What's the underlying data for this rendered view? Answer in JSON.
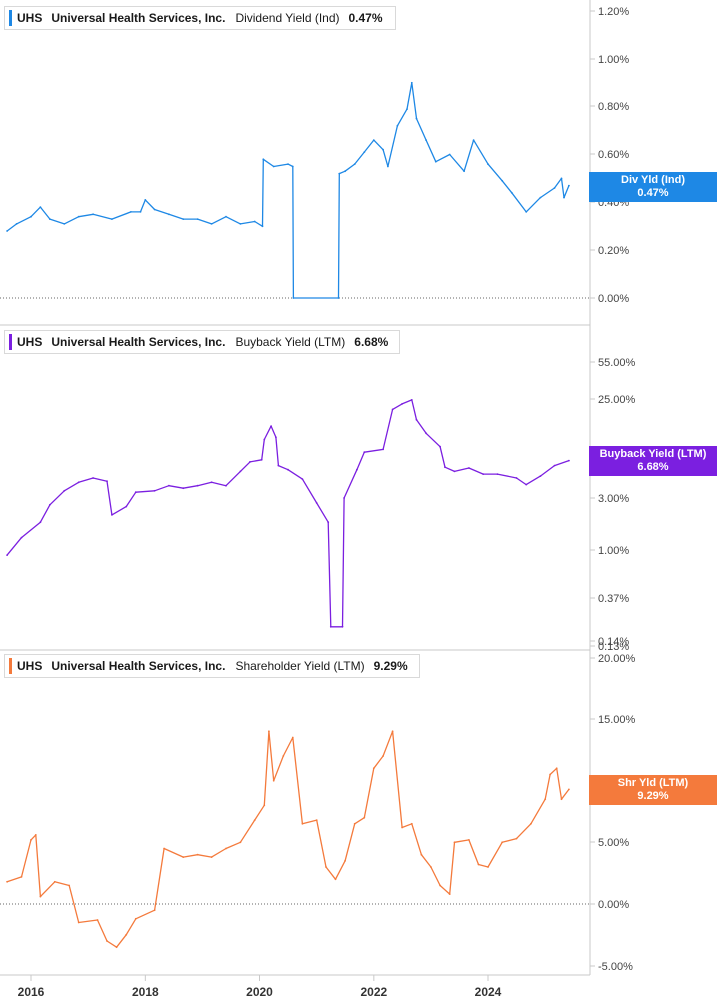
{
  "colors": {
    "dividend": "#1e88e5",
    "buyback": "#7b1fe0",
    "shareholder": "#f47a3c",
    "grid": "#c9c9c9",
    "axis_text": "#444444"
  },
  "x_axis": {
    "tick_labels": [
      "2016",
      "2018",
      "2020",
      "2022",
      "2024"
    ]
  },
  "panels": [
    {
      "ticker": "UHS",
      "company": "Universal Health Services, Inc.",
      "metric": "Dividend Yield (Ind)",
      "value": "0.47%",
      "flag_label": "Div Yld (Ind)",
      "flag_value": "0.47%",
      "axis_ticks": [
        "1.20%",
        "1.00%",
        "0.80%",
        "0.60%",
        "0.40%",
        "0.20%",
        "0.00%"
      ]
    },
    {
      "ticker": "UHS",
      "company": "Universal Health Services, Inc.",
      "metric": "Buyback Yield (LTM)",
      "value": "6.68%",
      "flag_label": "Buyback Yield (LTM)",
      "flag_value": "6.68%",
      "axis_ticks": [
        "55.00%",
        "25.00%",
        "3.00%",
        "1.00%",
        "0.37%",
        "0.14%",
        "0.13%"
      ]
    },
    {
      "ticker": "UHS",
      "company": "Universal Health Services, Inc.",
      "metric": "Shareholder Yield (LTM)",
      "value": "9.29%",
      "flag_label": "Shr Yld (LTM)",
      "flag_value": "9.29%",
      "axis_ticks": [
        "20.00%",
        "15.00%",
        "10.00%",
        "5.00%",
        "0.00%",
        "-5.00%"
      ]
    }
  ],
  "chart_data": [
    {
      "type": "line",
      "title": "Dividend Yield (Ind)",
      "ylim": [
        0,
        1.2
      ],
      "y_scale": "linear",
      "series": [
        {
          "name": "Dividend Yield (Ind)",
          "points": [
            [
              "2015-08-01",
              0.28
            ],
            [
              "2015-10-01",
              0.31
            ],
            [
              "2016-01-01",
              0.34
            ],
            [
              "2016-03-01",
              0.38
            ],
            [
              "2016-05-01",
              0.33
            ],
            [
              "2016-08-01",
              0.31
            ],
            [
              "2016-11-01",
              0.34
            ],
            [
              "2017-02-01",
              0.35
            ],
            [
              "2017-06-01",
              0.33
            ],
            [
              "2017-10-01",
              0.36
            ],
            [
              "2017-12-01",
              0.36
            ],
            [
              "2018-01-01",
              0.41
            ],
            [
              "2018-03-01",
              0.37
            ],
            [
              "2018-06-01",
              0.35
            ],
            [
              "2018-09-01",
              0.33
            ],
            [
              "2018-12-01",
              0.33
            ],
            [
              "2019-03-01",
              0.31
            ],
            [
              "2019-06-01",
              0.34
            ],
            [
              "2019-09-01",
              0.31
            ],
            [
              "2019-12-01",
              0.32
            ],
            [
              "2020-01-20",
              0.3
            ],
            [
              "2020-01-25",
              0.58
            ],
            [
              "2020-04-01",
              0.55
            ],
            [
              "2020-07-01",
              0.56
            ],
            [
              "2020-08-01",
              0.55
            ],
            [
              "2020-08-05",
              0.0
            ],
            [
              "2021-05-20",
              0.0
            ],
            [
              "2021-05-25",
              0.52
            ],
            [
              "2021-07-01",
              0.53
            ],
            [
              "2021-09-01",
              0.56
            ],
            [
              "2021-11-01",
              0.61
            ],
            [
              "2022-01-01",
              0.66
            ],
            [
              "2022-03-01",
              0.62
            ],
            [
              "2022-04-01",
              0.55
            ],
            [
              "2022-06-01",
              0.72
            ],
            [
              "2022-08-01",
              0.79
            ],
            [
              "2022-09-01",
              0.9
            ],
            [
              "2022-10-01",
              0.75
            ],
            [
              "2022-12-01",
              0.66
            ],
            [
              "2023-02-01",
              0.57
            ],
            [
              "2023-05-01",
              0.6
            ],
            [
              "2023-08-01",
              0.53
            ],
            [
              "2023-10-01",
              0.66
            ],
            [
              "2024-01-01",
              0.56
            ],
            [
              "2024-04-01",
              0.49
            ],
            [
              "2024-06-01",
              0.44
            ],
            [
              "2024-09-01",
              0.36
            ],
            [
              "2024-12-01",
              0.42
            ],
            [
              "2025-03-01",
              0.46
            ],
            [
              "2025-04-15",
              0.5
            ],
            [
              "2025-05-01",
              0.42
            ],
            [
              "2025-06-01",
              0.47
            ]
          ]
        }
      ]
    },
    {
      "type": "line",
      "title": "Buyback Yield (LTM)",
      "y_scale": "log",
      "ylim": [
        0.13,
        55
      ],
      "series": [
        {
          "name": "Buyback Yield (LTM)",
          "points": [
            [
              "2015-08-01",
              0.9
            ],
            [
              "2015-11-01",
              1.3
            ],
            [
              "2016-03-01",
              1.8
            ],
            [
              "2016-05-01",
              2.6
            ],
            [
              "2016-08-01",
              3.5
            ],
            [
              "2016-11-01",
              4.2
            ],
            [
              "2017-02-01",
              4.6
            ],
            [
              "2017-05-01",
              4.3
            ],
            [
              "2017-06-01",
              2.1
            ],
            [
              "2017-09-01",
              2.5
            ],
            [
              "2017-11-01",
              3.4
            ],
            [
              "2018-03-01",
              3.5
            ],
            [
              "2018-06-01",
              3.9
            ],
            [
              "2018-09-01",
              3.7
            ],
            [
              "2018-12-01",
              3.9
            ],
            [
              "2019-03-01",
              4.2
            ],
            [
              "2019-06-01",
              3.9
            ],
            [
              "2019-09-01",
              5.3
            ],
            [
              "2019-11-01",
              6.5
            ],
            [
              "2020-01-15",
              6.8
            ],
            [
              "2020-02-01",
              10.5
            ],
            [
              "2020-03-15",
              14.0
            ],
            [
              "2020-04-15",
              11.0
            ],
            [
              "2020-05-01",
              6.0
            ],
            [
              "2020-07-01",
              5.5
            ],
            [
              "2020-10-01",
              4.5
            ],
            [
              "2021-01-01",
              2.7
            ],
            [
              "2021-03-15",
              1.8
            ],
            [
              "2021-04-01",
              0.19
            ],
            [
              "2021-06-15",
              0.19
            ],
            [
              "2021-06-25",
              3.0
            ],
            [
              "2021-09-15",
              5.5
            ],
            [
              "2021-11-01",
              8.0
            ],
            [
              "2022-03-01",
              8.5
            ],
            [
              "2022-05-01",
              20.0
            ],
            [
              "2022-07-01",
              22.5
            ],
            [
              "2022-09-01",
              24.5
            ],
            [
              "2022-10-01",
              16.0
            ],
            [
              "2022-12-01",
              12.0
            ],
            [
              "2023-03-01",
              9.0
            ],
            [
              "2023-04-01",
              5.8
            ],
            [
              "2023-06-01",
              5.3
            ],
            [
              "2023-09-01",
              5.7
            ],
            [
              "2023-12-01",
              5.0
            ],
            [
              "2024-03-01",
              5.0
            ],
            [
              "2024-07-01",
              4.6
            ],
            [
              "2024-09-01",
              4.0
            ],
            [
              "2024-12-01",
              4.8
            ],
            [
              "2025-03-01",
              6.0
            ],
            [
              "2025-06-01",
              6.68
            ]
          ]
        }
      ]
    },
    {
      "type": "line",
      "title": "Shareholder Yield (LTM)",
      "ylim": [
        -5,
        20
      ],
      "y_scale": "linear",
      "series": [
        {
          "name": "Shareholder Yield (LTM)",
          "points": [
            [
              "2015-08-01",
              1.8
            ],
            [
              "2015-11-01",
              2.2
            ],
            [
              "2016-01-01",
              5.2
            ],
            [
              "2016-02-01",
              5.6
            ],
            [
              "2016-03-01",
              0.6
            ],
            [
              "2016-06-01",
              1.8
            ],
            [
              "2016-09-01",
              1.5
            ],
            [
              "2016-11-01",
              -1.5
            ],
            [
              "2017-03-01",
              -1.3
            ],
            [
              "2017-05-01",
              -3.0
            ],
            [
              "2017-07-01",
              -3.5
            ],
            [
              "2017-09-01",
              -2.5
            ],
            [
              "2017-11-01",
              -1.2
            ],
            [
              "2018-03-01",
              -0.5
            ],
            [
              "2018-05-01",
              4.5
            ],
            [
              "2018-09-01",
              3.8
            ],
            [
              "2018-12-01",
              4.0
            ],
            [
              "2019-03-01",
              3.8
            ],
            [
              "2019-06-01",
              4.5
            ],
            [
              "2019-09-01",
              5.0
            ],
            [
              "2019-12-01",
              6.8
            ],
            [
              "2020-02-01",
              8.0
            ],
            [
              "2020-03-01",
              14.0
            ],
            [
              "2020-04-01",
              10.0
            ],
            [
              "2020-06-01",
              12.0
            ],
            [
              "2020-08-01",
              13.5
            ],
            [
              "2020-10-01",
              6.5
            ],
            [
              "2021-01-01",
              6.8
            ],
            [
              "2021-03-01",
              3.0
            ],
            [
              "2021-05-01",
              2.0
            ],
            [
              "2021-07-01",
              3.5
            ],
            [
              "2021-09-01",
              6.5
            ],
            [
              "2021-11-01",
              7.0
            ],
            [
              "2022-01-01",
              11.0
            ],
            [
              "2022-03-01",
              12.0
            ],
            [
              "2022-05-01",
              14.0
            ],
            [
              "2022-07-01",
              6.2
            ],
            [
              "2022-09-01",
              6.5
            ],
            [
              "2022-11-01",
              4.0
            ],
            [
              "2023-01-01",
              3.0
            ],
            [
              "2023-03-01",
              1.5
            ],
            [
              "2023-05-01",
              0.8
            ],
            [
              "2023-06-01",
              5.0
            ],
            [
              "2023-09-01",
              5.2
            ],
            [
              "2023-11-01",
              3.2
            ],
            [
              "2024-01-01",
              3.0
            ],
            [
              "2024-04-01",
              5.0
            ],
            [
              "2024-07-01",
              5.3
            ],
            [
              "2024-10-01",
              6.5
            ],
            [
              "2025-01-01",
              8.5
            ],
            [
              "2025-02-01",
              10.5
            ],
            [
              "2025-03-15",
              11.0
            ],
            [
              "2025-04-15",
              8.5
            ],
            [
              "2025-06-01",
              9.29
            ]
          ]
        }
      ]
    }
  ]
}
